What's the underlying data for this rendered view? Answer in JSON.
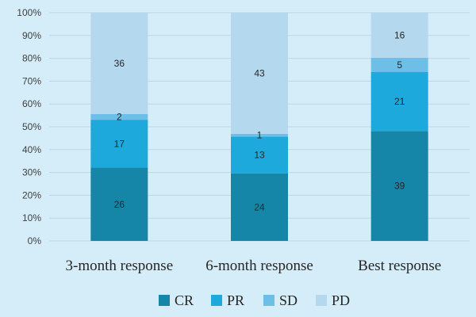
{
  "chart_data": {
    "type": "bar",
    "stacked": "percent",
    "categories": [
      "3-month response",
      "6-month response",
      "Best response"
    ],
    "series": [
      {
        "name": "CR",
        "color": "#1686a8",
        "values": [
          26,
          24,
          39
        ]
      },
      {
        "name": "PR",
        "color": "#1ea9dc",
        "values": [
          17,
          13,
          21
        ]
      },
      {
        "name": "SD",
        "color": "#6dbfe8",
        "values": [
          2,
          1,
          5
        ]
      },
      {
        "name": "PD",
        "color": "#b4d9ef",
        "values": [
          36,
          43,
          16
        ]
      }
    ],
    "ylim": [
      0,
      100
    ],
    "yticks": [
      "0%",
      "10%",
      "20%",
      "30%",
      "40%",
      "50%",
      "60%",
      "70%",
      "80%",
      "90%",
      "100%"
    ],
    "grid": true,
    "legend": "bottom",
    "title": "",
    "xlabel": "",
    "ylabel": ""
  }
}
